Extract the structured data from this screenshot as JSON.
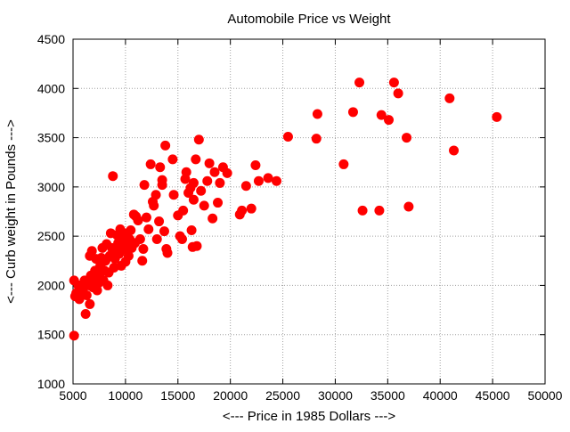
{
  "chart_data": {
    "type": "scatter",
    "title": "Automobile Price vs Weight",
    "xlabel": "<--- Price in 1985 Dollars --->",
    "ylabel": "<--- Curb weight in Pounds --->",
    "xlim": [
      5000,
      50000
    ],
    "ylim": [
      1000,
      4500
    ],
    "xticks": [
      5000,
      10000,
      15000,
      20000,
      25000,
      30000,
      35000,
      40000,
      45000,
      50000
    ],
    "yticks": [
      1000,
      1500,
      2000,
      2500,
      3000,
      3500,
      4000,
      4500
    ],
    "grid": true,
    "marker_color": "#ff0000",
    "points": [
      [
        5100,
        1490
      ],
      [
        5100,
        2050
      ],
      [
        5200,
        1890
      ],
      [
        5300,
        1920
      ],
      [
        5500,
        2000
      ],
      [
        5600,
        1860
      ],
      [
        5800,
        1950
      ],
      [
        6000,
        1980
      ],
      [
        6100,
        2050
      ],
      [
        6200,
        1710
      ],
      [
        6300,
        1900
      ],
      [
        6400,
        2010
      ],
      [
        6500,
        2000
      ],
      [
        6600,
        1810
      ],
      [
        6700,
        2100
      ],
      [
        6600,
        2300
      ],
      [
        6800,
        2350
      ],
      [
        6900,
        1980
      ],
      [
        7000,
        2050
      ],
      [
        7100,
        2150
      ],
      [
        7200,
        2270
      ],
      [
        7300,
        1950
      ],
      [
        7400,
        2020
      ],
      [
        7500,
        2100
      ],
      [
        7600,
        2200
      ],
      [
        7700,
        2280
      ],
      [
        7800,
        2380
      ],
      [
        7900,
        2050
      ],
      [
        8000,
        2150
      ],
      [
        8100,
        2250
      ],
      [
        8200,
        2420
      ],
      [
        8300,
        2000
      ],
      [
        8400,
        2130
      ],
      [
        8500,
        2300
      ],
      [
        8600,
        2530
      ],
      [
        8700,
        2380
      ],
      [
        8800,
        3110
      ],
      [
        8900,
        2180
      ],
      [
        9000,
        2270
      ],
      [
        9100,
        2360
      ],
      [
        9200,
        2510
      ],
      [
        9300,
        2430
      ],
      [
        9400,
        2320
      ],
      [
        9500,
        2570
      ],
      [
        9600,
        2200
      ],
      [
        9700,
        2400
      ],
      [
        9800,
        2480
      ],
      [
        9900,
        2530
      ],
      [
        10000,
        2240
      ],
      [
        10100,
        2360
      ],
      [
        10200,
        2410
      ],
      [
        10300,
        2300
      ],
      [
        10400,
        2470
      ],
      [
        10500,
        2560
      ],
      [
        10600,
        2380
      ],
      [
        10800,
        2720
      ],
      [
        10900,
        2430
      ],
      [
        11000,
        2700
      ],
      [
        11200,
        2660
      ],
      [
        11400,
        2470
      ],
      [
        11600,
        2250
      ],
      [
        11700,
        2370
      ],
      [
        11800,
        3020
      ],
      [
        12000,
        2690
      ],
      [
        12200,
        2570
      ],
      [
        12400,
        3230
      ],
      [
        12600,
        2850
      ],
      [
        12700,
        2810
      ],
      [
        12900,
        2920
      ],
      [
        13000,
        2470
      ],
      [
        13200,
        2650
      ],
      [
        13300,
        3200
      ],
      [
        13500,
        3070
      ],
      [
        13500,
        3020
      ],
      [
        13700,
        2550
      ],
      [
        13800,
        3420
      ],
      [
        13900,
        2370
      ],
      [
        14000,
        2330
      ],
      [
        14500,
        3280
      ],
      [
        14600,
        2920
      ],
      [
        15000,
        2710
      ],
      [
        15200,
        2500
      ],
      [
        15400,
        2470
      ],
      [
        15500,
        2760
      ],
      [
        15700,
        3080
      ],
      [
        15800,
        3150
      ],
      [
        16000,
        2940
      ],
      [
        16200,
        2990
      ],
      [
        16300,
        2560
      ],
      [
        16400,
        2390
      ],
      [
        16500,
        2870
      ],
      [
        16500,
        3040
      ],
      [
        16700,
        3280
      ],
      [
        16800,
        2400
      ],
      [
        17000,
        3480
      ],
      [
        17200,
        2960
      ],
      [
        17500,
        2810
      ],
      [
        17800,
        3060
      ],
      [
        18000,
        3240
      ],
      [
        18300,
        2680
      ],
      [
        18500,
        3150
      ],
      [
        18800,
        2840
      ],
      [
        19000,
        3040
      ],
      [
        19300,
        3200
      ],
      [
        19700,
        3140
      ],
      [
        20900,
        2720
      ],
      [
        21100,
        2760
      ],
      [
        21500,
        3010
      ],
      [
        22000,
        2780
      ],
      [
        22400,
        3220
      ],
      [
        22700,
        3060
      ],
      [
        23600,
        3090
      ],
      [
        24400,
        3060
      ],
      [
        25500,
        3510
      ],
      [
        28200,
        3490
      ],
      [
        28300,
        3740
      ],
      [
        30800,
        3230
      ],
      [
        31700,
        3760
      ],
      [
        32300,
        4060
      ],
      [
        32600,
        2760
      ],
      [
        34200,
        2760
      ],
      [
        34400,
        3730
      ],
      [
        35100,
        3680
      ],
      [
        35600,
        4060
      ],
      [
        36000,
        3950
      ],
      [
        36800,
        3500
      ],
      [
        37000,
        2800
      ],
      [
        40900,
        3900
      ],
      [
        41300,
        3370
      ],
      [
        45400,
        3710
      ]
    ]
  }
}
